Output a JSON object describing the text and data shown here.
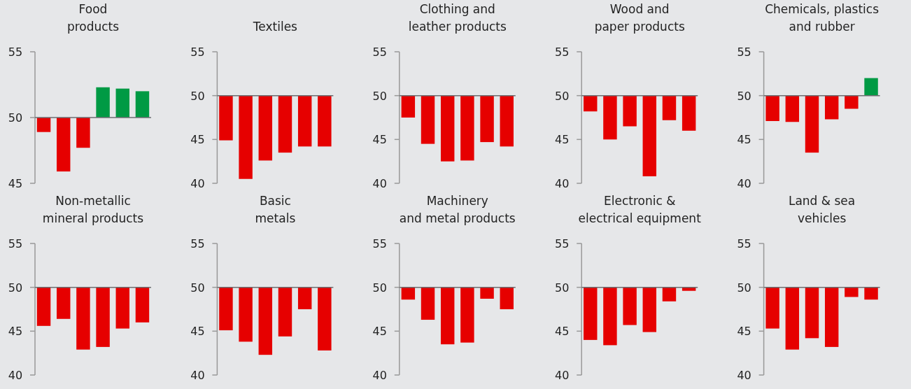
{
  "chart_data": [
    {
      "type": "bar",
      "title": "Food\nproducts",
      "categories": [
        null,
        null,
        null,
        null,
        null,
        null
      ],
      "base": [
        50,
        50,
        50,
        50,
        50,
        50
      ],
      "values": [
        -1.1,
        -4.1,
        -2.3,
        2.3,
        2.2,
        2.0
      ],
      "colors": [
        "#e60000",
        "#e60000",
        "#e60000",
        "#009a44",
        "#009a44",
        "#009a44"
      ],
      "ylim": [
        45,
        55
      ],
      "yticks": [
        45,
        50,
        55
      ]
    },
    {
      "type": "bar",
      "title": "Textiles",
      "categories": [
        null,
        null,
        null,
        null,
        null,
        null
      ],
      "base": [
        50,
        50,
        50,
        50,
        50,
        50
      ],
      "values": [
        -5.1,
        -9.5,
        -7.4,
        -6.5,
        -5.8,
        -5.8
      ],
      "colors": [
        "#e60000",
        "#e60000",
        "#e60000",
        "#e60000",
        "#e60000",
        "#e60000"
      ],
      "ylim": [
        40,
        55
      ],
      "yticks": [
        40,
        45,
        50,
        55
      ]
    },
    {
      "type": "bar",
      "title": "Clothing and\nleather products",
      "categories": [
        null,
        null,
        null,
        null,
        null,
        null
      ],
      "base": [
        50,
        50,
        50,
        50,
        50,
        50
      ],
      "values": [
        -2.5,
        -5.5,
        -7.5,
        -7.4,
        -5.3,
        -5.8
      ],
      "colors": [
        "#e60000",
        "#e60000",
        "#e60000",
        "#e60000",
        "#e60000",
        "#e60000"
      ],
      "ylim": [
        40,
        55
      ],
      "yticks": [
        40,
        45,
        50,
        55
      ]
    },
    {
      "type": "bar",
      "title": "Wood and\npaper products",
      "categories": [
        null,
        null,
        null,
        null,
        null,
        null
      ],
      "base": [
        50,
        50,
        50,
        50,
        50,
        50
      ],
      "values": [
        -1.8,
        -5.0,
        -3.5,
        -9.2,
        -2.8,
        -4.0
      ],
      "colors": [
        "#e60000",
        "#e60000",
        "#e60000",
        "#e60000",
        "#e60000",
        "#e60000"
      ],
      "ylim": [
        40,
        55
      ],
      "yticks": [
        40,
        45,
        50,
        55
      ]
    },
    {
      "type": "bar",
      "title": "Chemicals, plastics\nand rubber",
      "categories": [
        null,
        null,
        null,
        null,
        null,
        null
      ],
      "base": [
        50,
        50,
        50,
        50,
        50,
        50
      ],
      "values": [
        -2.9,
        -3.0,
        -6.5,
        -2.7,
        -1.5,
        2.0
      ],
      "colors": [
        "#e60000",
        "#e60000",
        "#e60000",
        "#e60000",
        "#e60000",
        "#009a44"
      ],
      "ylim": [
        40,
        55
      ],
      "yticks": [
        40,
        45,
        50,
        55
      ]
    },
    {
      "type": "bar",
      "title": "Non-metallic\nmineral products",
      "categories": [
        null,
        null,
        null,
        null,
        null,
        null
      ],
      "base": [
        50,
        50,
        50,
        50,
        50,
        50
      ],
      "values": [
        -4.4,
        -3.6,
        -7.1,
        -6.8,
        -4.7,
        -4.0
      ],
      "colors": [
        "#e60000",
        "#e60000",
        "#e60000",
        "#e60000",
        "#e60000",
        "#e60000"
      ],
      "ylim": [
        40,
        55
      ],
      "yticks": [
        40,
        45,
        50,
        55
      ]
    },
    {
      "type": "bar",
      "title": "Basic\nmetals",
      "categories": [
        null,
        null,
        null,
        null,
        null,
        null
      ],
      "base": [
        50,
        50,
        50,
        50,
        50,
        50
      ],
      "values": [
        -4.9,
        -6.2,
        -7.7,
        -5.6,
        -2.5,
        -7.2
      ],
      "colors": [
        "#e60000",
        "#e60000",
        "#e60000",
        "#e60000",
        "#e60000",
        "#e60000"
      ],
      "ylim": [
        40,
        55
      ],
      "yticks": [
        40,
        45,
        50,
        55
      ]
    },
    {
      "type": "bar",
      "title": "Machinery\nand metal products",
      "categories": [
        null,
        null,
        null,
        null,
        null,
        null
      ],
      "base": [
        50,
        50,
        50,
        50,
        50,
        50
      ],
      "values": [
        -1.4,
        -3.7,
        -6.5,
        -6.3,
        -1.3,
        -2.5
      ],
      "colors": [
        "#e60000",
        "#e60000",
        "#e60000",
        "#e60000",
        "#e60000",
        "#e60000"
      ],
      "ylim": [
        40,
        55
      ],
      "yticks": [
        40,
        45,
        50,
        55
      ]
    },
    {
      "type": "bar",
      "title": "Electronic &\nelectrical equipment",
      "categories": [
        null,
        null,
        null,
        null,
        null,
        null
      ],
      "base": [
        50,
        50,
        50,
        50,
        50,
        50
      ],
      "values": [
        -6.0,
        -6.6,
        -4.3,
        -5.1,
        -1.6,
        -0.4
      ],
      "colors": [
        "#e60000",
        "#e60000",
        "#e60000",
        "#e60000",
        "#e60000",
        "#e60000"
      ],
      "ylim": [
        40,
        55
      ],
      "yticks": [
        40,
        45,
        50,
        55
      ]
    },
    {
      "type": "bar",
      "title": "Land & sea\nvehicles",
      "categories": [
        null,
        null,
        null,
        null,
        null,
        null
      ],
      "base": [
        50,
        50,
        50,
        50,
        50,
        50
      ],
      "values": [
        -4.7,
        -7.1,
        -5.8,
        -6.8,
        -1.1,
        -1.4
      ],
      "colors": [
        "#e60000",
        "#e60000",
        "#e60000",
        "#e60000",
        "#e60000",
        "#e60000"
      ],
      "ylim": [
        40,
        55
      ],
      "yticks": [
        40,
        45,
        50,
        55
      ]
    }
  ]
}
